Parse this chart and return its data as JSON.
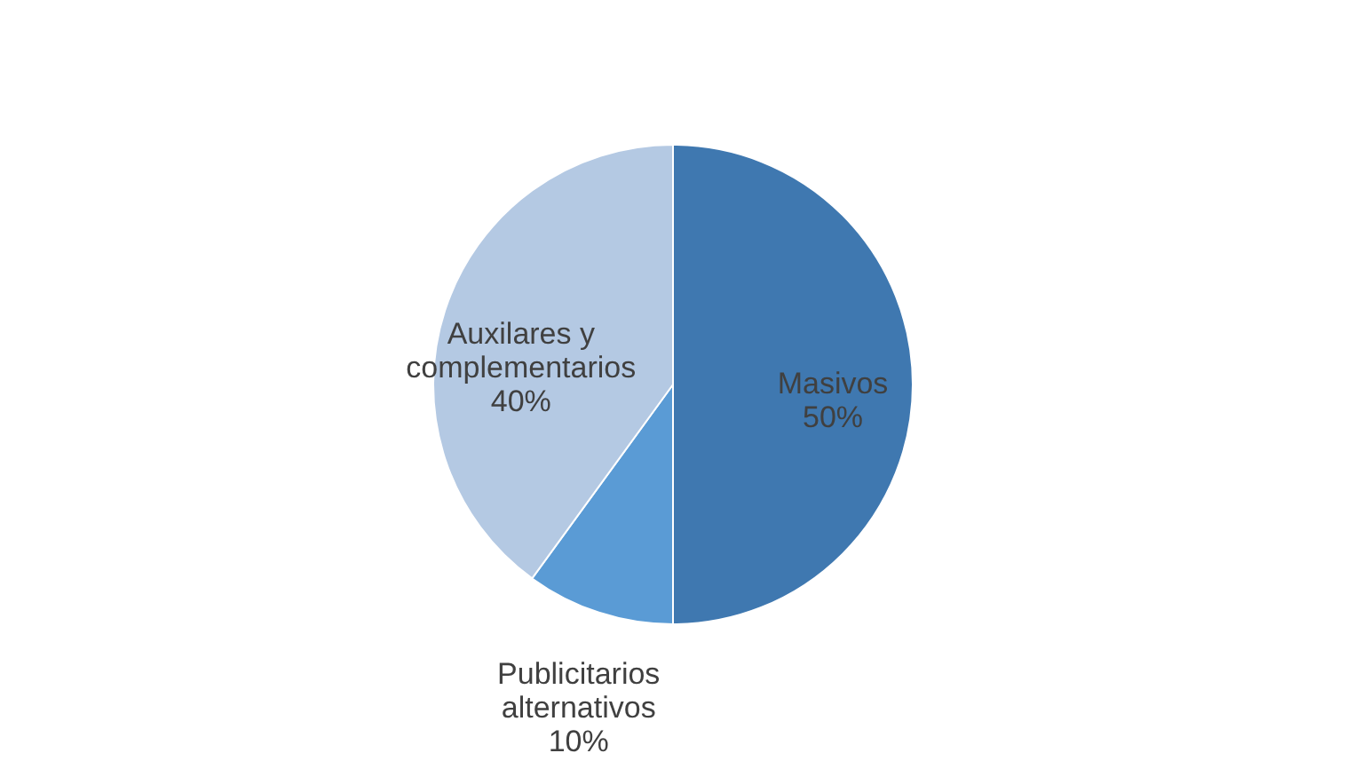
{
  "chart_data": {
    "type": "pie",
    "categories": [
      "Masivos",
      "Publicitarios alternativos",
      "Auxilares y complementarios"
    ],
    "values": [
      50,
      10,
      40
    ],
    "colors": [
      "#3f78b0",
      "#5a9bd5",
      "#b4c9e3"
    ],
    "value_labels": [
      "50%",
      "10%",
      "40%"
    ],
    "data_labels": true,
    "legend": false
  }
}
